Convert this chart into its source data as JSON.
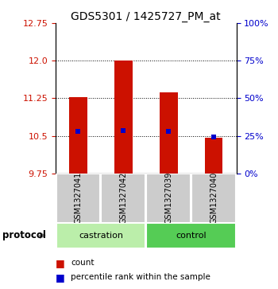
{
  "title": "GDS5301 / 1425727_PM_at",
  "samples": [
    "GSM1327041",
    "GSM1327042",
    "GSM1327039",
    "GSM1327040"
  ],
  "groups": [
    "castration",
    "castration",
    "control",
    "control"
  ],
  "bar_bottoms": [
    9.75,
    9.75,
    9.75,
    9.75
  ],
  "bar_tops": [
    11.27,
    12.0,
    11.37,
    10.46
  ],
  "percentile_values": [
    10.585,
    10.61,
    10.585,
    10.47
  ],
  "ylim": [
    9.75,
    12.75
  ],
  "yticks_left": [
    9.75,
    10.5,
    11.25,
    12.0,
    12.75
  ],
  "yticks_right": [
    0,
    25,
    50,
    75,
    100
  ],
  "bar_color": "#cc1100",
  "percentile_color": "#0000cc",
  "castration_color": "#bbeeaa",
  "control_color": "#55cc55",
  "sample_box_color": "#cccccc",
  "background_color": "#ffffff",
  "plot_bg_color": "#ffffff",
  "legend_count_color": "#cc1100",
  "legend_pct_color": "#0000cc",
  "bar_width": 0.4
}
